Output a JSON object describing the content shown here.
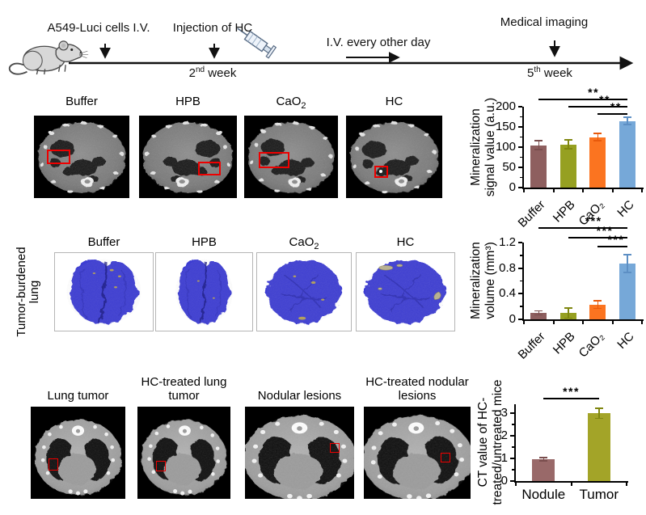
{
  "figure": {
    "timeline": {
      "cells_label": "A549-Luci cells I.V.",
      "injection_label": "Injection of HC",
      "iv_label": "I.V. every other day",
      "imaging_label": "Medical  imaging",
      "week2": {
        "num": "2",
        "ord": "nd",
        "word": "week"
      },
      "week5": {
        "num": "5",
        "ord": "th",
        "word": "week"
      }
    },
    "ct_row": {
      "labels": [
        {
          "main": "Buffer",
          "sub": ""
        },
        {
          "main": "HPB",
          "sub": ""
        },
        {
          "main": "CaO",
          "sub": "2"
        },
        {
          "main": "HC",
          "sub": ""
        }
      ]
    },
    "lung_row": {
      "side_label_line1": "Tumor-burdened",
      "side_label_line2": "lung",
      "labels": [
        {
          "main": "Buffer",
          "sub": ""
        },
        {
          "main": "HPB",
          "sub": ""
        },
        {
          "main": "CaO",
          "sub": "2"
        },
        {
          "main": "HC",
          "sub": ""
        }
      ]
    },
    "bottom_row": {
      "labels": [
        "Lung tumor",
        "HC-treated lung tumor",
        "Nodular lesions",
        "HC-treated nodular lesions"
      ]
    }
  },
  "chart_data": [
    {
      "type": "bar",
      "title": "",
      "xlabel": "",
      "ylabel": "Mineralization signal value (a.u.)",
      "ylabel_lines": [
        "Mineralization",
        "signal value (a.u.)"
      ],
      "categories": [
        "Buffer",
        "HPB",
        "CaO₂",
        "HC"
      ],
      "values": [
        105,
        107,
        125,
        165
      ],
      "errors": [
        11,
        11,
        9,
        9
      ],
      "bar_colors": [
        "#8e5f5f",
        "#96a021",
        "#fb7420",
        "#76a8d8"
      ],
      "error_colors": [
        "#7a4e4e",
        "#7f860f",
        "#e85a0c",
        "#5d8fc4"
      ],
      "ylim": [
        0,
        200
      ],
      "yticks": [
        0,
        50,
        100,
        150,
        200
      ],
      "ytick_labels": [
        "0",
        "50",
        "100",
        "150",
        "200"
      ],
      "yminor": 25,
      "grid": false,
      "significance": [
        {
          "from": 0,
          "to": 3,
          "label": "**"
        },
        {
          "from": 1,
          "to": 3,
          "label": "**"
        },
        {
          "from": 2,
          "to": 3,
          "label": "**"
        }
      ]
    },
    {
      "type": "bar",
      "title": "",
      "xlabel": "",
      "ylabel": "Mineralization volume (mm³)",
      "ylabel_lines": [
        "Mineralization",
        "volume (mm³)"
      ],
      "categories": [
        "Buffer",
        "HPB",
        "CaO₂",
        "HC"
      ],
      "values": [
        0.1,
        0.1,
        0.23,
        0.87
      ],
      "errors": [
        0.03,
        0.08,
        0.06,
        0.14
      ],
      "bar_colors": [
        "#8e5f5f",
        "#96a021",
        "#fb7420",
        "#76a8d8"
      ],
      "error_colors": [
        "#7a4e4e",
        "#7f860f",
        "#e85a0c",
        "#5d8fc4"
      ],
      "ylim": [
        0,
        1.2
      ],
      "yticks": [
        0,
        0.4,
        0.8,
        1.2
      ],
      "ytick_labels": [
        "0",
        "0.4",
        "0.8",
        "1.2"
      ],
      "yminor": 0.2,
      "grid": false,
      "significance": [
        {
          "from": 0,
          "to": 3,
          "label": "***"
        },
        {
          "from": 1,
          "to": 3,
          "label": "***"
        },
        {
          "from": 2,
          "to": 3,
          "label": "***"
        }
      ]
    },
    {
      "type": "bar",
      "title": "",
      "xlabel": "",
      "ylabel": "CT value of HC-treated/untreated mice",
      "ylabel_lines": [
        "CT value of HC-",
        "treated/untreated mice"
      ],
      "categories": [
        "Nodule",
        "Tumor"
      ],
      "values": [
        0.97,
        3.0
      ],
      "errors": [
        0.07,
        0.22
      ],
      "bar_colors": [
        "#996969",
        "#a3a428"
      ],
      "error_colors": [
        "#7a4e4e",
        "#7f860f"
      ],
      "ylim": [
        0,
        3.4
      ],
      "yticks": [
        0,
        1,
        2,
        3
      ],
      "ytick_labels": [
        "0",
        "1",
        "2",
        "3"
      ],
      "yminor": 0.5,
      "grid": false,
      "significance": [
        {
          "from": 0,
          "to": 1,
          "label": "***"
        }
      ]
    }
  ]
}
